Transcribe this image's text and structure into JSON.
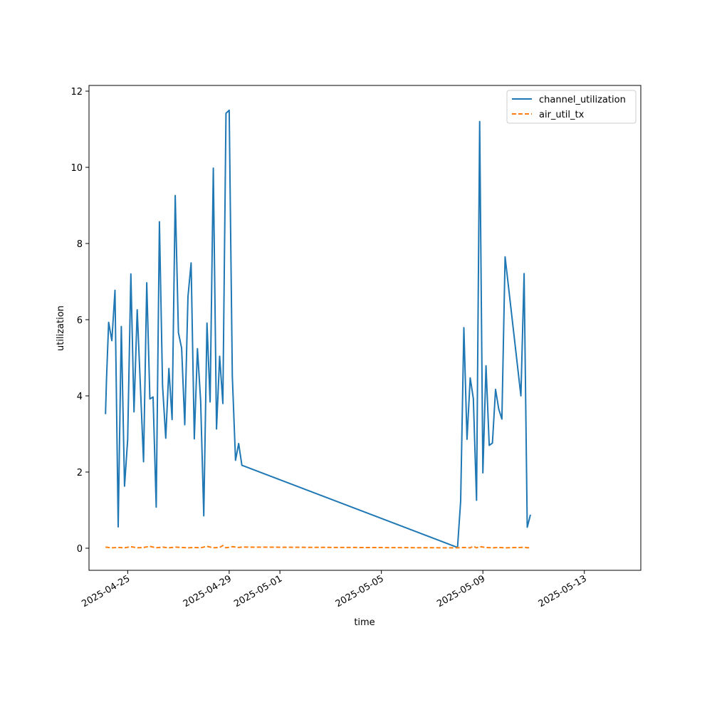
{
  "chart_data": {
    "type": "line",
    "title": "",
    "xlabel": "time",
    "ylabel": "utilization",
    "x_ticks": [
      "2025-04-25",
      "2025-04-29",
      "2025-05-01",
      "2025-05-05",
      "2025-05-09",
      "2025-05-13"
    ],
    "y_ticks": [
      "0",
      "2",
      "4",
      "6",
      "8",
      "10",
      "12"
    ],
    "xlim": [
      "2025-04-23 11:24",
      "2025-05-15 05:24"
    ],
    "ylim": [
      -0.58,
      12.15
    ],
    "grid": false,
    "legend": "upper right",
    "series": [
      {
        "name": "channel_utilization",
        "color": "#1f77b4",
        "style": "solid",
        "points": [
          [
            "2025-04-24 03:00",
            3.52
          ],
          [
            "2025-04-24 04:00",
            4.45
          ],
          [
            "2025-04-24 06:00",
            5.93
          ],
          [
            "2025-04-24 09:00",
            5.45
          ],
          [
            "2025-04-24 12:00",
            6.77
          ],
          [
            "2025-04-24 15:00",
            0.56
          ],
          [
            "2025-04-24 18:00",
            5.82
          ],
          [
            "2025-04-24 21:00",
            1.63
          ],
          [
            "2025-04-25 00:00",
            2.85
          ],
          [
            "2025-04-25 03:00",
            7.2
          ],
          [
            "2025-04-25 06:00",
            3.58
          ],
          [
            "2025-04-25 09:00",
            6.26
          ],
          [
            "2025-04-25 15:00",
            2.27
          ],
          [
            "2025-04-25 18:00",
            6.97
          ],
          [
            "2025-04-25 21:00",
            3.92
          ],
          [
            "2025-04-26 00:00",
            3.97
          ],
          [
            "2025-04-26 03:00",
            1.08
          ],
          [
            "2025-04-26 06:00",
            8.57
          ],
          [
            "2025-04-26 09:00",
            4.27
          ],
          [
            "2025-04-26 12:00",
            2.89
          ],
          [
            "2025-04-26 15:00",
            4.72
          ],
          [
            "2025-04-26 18:00",
            3.38
          ],
          [
            "2025-04-26 21:00",
            9.26
          ],
          [
            "2025-04-27 00:00",
            5.66
          ],
          [
            "2025-04-27 03:00",
            5.25
          ],
          [
            "2025-04-27 06:00",
            3.24
          ],
          [
            "2025-04-27 09:00",
            6.6
          ],
          [
            "2025-04-27 12:00",
            7.49
          ],
          [
            "2025-04-27 15:00",
            2.87
          ],
          [
            "2025-04-27 18:00",
            5.24
          ],
          [
            "2025-04-27 21:00",
            3.87
          ],
          [
            "2025-04-28 00:00",
            0.85
          ],
          [
            "2025-04-28 03:00",
            5.91
          ],
          [
            "2025-04-28 06:00",
            3.84
          ],
          [
            "2025-04-28 09:00",
            9.98
          ],
          [
            "2025-04-28 12:00",
            3.13
          ],
          [
            "2025-04-28 15:00",
            5.04
          ],
          [
            "2025-04-28 18:00",
            3.8
          ],
          [
            "2025-04-28 21:00",
            11.42
          ],
          [
            "2025-04-29 00:00",
            11.5
          ],
          [
            "2025-04-29 03:00",
            4.51
          ],
          [
            "2025-04-29 06:00",
            2.31
          ],
          [
            "2025-04-29 09:00",
            2.75
          ],
          [
            "2025-04-29 12:00",
            2.18
          ],
          [
            "2025-05-08 00:00",
            0.02
          ],
          [
            "2025-05-08 03:00",
            1.24
          ],
          [
            "2025-05-08 06:00",
            5.79
          ],
          [
            "2025-05-08 09:00",
            2.86
          ],
          [
            "2025-05-08 12:00",
            4.47
          ],
          [
            "2025-05-08 15:00",
            3.93
          ],
          [
            "2025-05-08 18:00",
            1.26
          ],
          [
            "2025-05-08 21:00",
            11.2
          ],
          [
            "2025-05-09 00:00",
            1.98
          ],
          [
            "2025-05-09 03:00",
            4.79
          ],
          [
            "2025-05-09 06:00",
            2.7
          ],
          [
            "2025-05-09 09:00",
            2.76
          ],
          [
            "2025-05-09 12:00",
            4.17
          ],
          [
            "2025-05-09 15:00",
            3.65
          ],
          [
            "2025-05-09 18:00",
            3.39
          ],
          [
            "2025-05-09 21:00",
            7.65
          ],
          [
            "2025-05-10 12:00",
            4.0
          ],
          [
            "2025-05-10 15:00",
            7.21
          ],
          [
            "2025-05-10 18:00",
            0.55
          ],
          [
            "2025-05-10 21:00",
            0.88
          ]
        ]
      },
      {
        "name": "air_util_tx",
        "color": "#ff7f0e",
        "style": "dashed",
        "points": [
          [
            "2025-04-24 03:00",
            0.03
          ],
          [
            "2025-04-24 09:00",
            0.01
          ],
          [
            "2025-04-24 15:00",
            0.02
          ],
          [
            "2025-04-24 21:00",
            0.01
          ],
          [
            "2025-04-25 03:00",
            0.04
          ],
          [
            "2025-04-25 09:00",
            0.01
          ],
          [
            "2025-04-25 15:00",
            0.02
          ],
          [
            "2025-04-25 21:00",
            0.05
          ],
          [
            "2025-04-26 03:00",
            0.01
          ],
          [
            "2025-04-26 09:00",
            0.03
          ],
          [
            "2025-04-26 15:00",
            0.01
          ],
          [
            "2025-04-26 21:00",
            0.03
          ],
          [
            "2025-04-27 03:00",
            0.02
          ],
          [
            "2025-04-27 09:00",
            0.01
          ],
          [
            "2025-04-27 15:00",
            0.02
          ],
          [
            "2025-04-27 21:00",
            0.01
          ],
          [
            "2025-04-28 03:00",
            0.05
          ],
          [
            "2025-04-28 09:00",
            0.01
          ],
          [
            "2025-04-28 15:00",
            0.02
          ],
          [
            "2025-04-28 18:00",
            0.07
          ],
          [
            "2025-04-28 21:00",
            0.01
          ],
          [
            "2025-04-29 03:00",
            0.04
          ],
          [
            "2025-04-29 09:00",
            0.02
          ],
          [
            "2025-04-29 12:00",
            0.03
          ],
          [
            "2025-05-08 00:00",
            0.01
          ],
          [
            "2025-05-08 06:00",
            0.02
          ],
          [
            "2025-05-08 12:00",
            0.01
          ],
          [
            "2025-05-08 15:00",
            0.05
          ],
          [
            "2025-05-08 18:00",
            0.01
          ],
          [
            "2025-05-08 21:00",
            0.04
          ],
          [
            "2025-05-09 03:00",
            0.02
          ],
          [
            "2025-05-09 09:00",
            0.01
          ],
          [
            "2025-05-09 15:00",
            0.02
          ],
          [
            "2025-05-09 21:00",
            0.01
          ],
          [
            "2025-05-10 12:00",
            0.02
          ],
          [
            "2025-05-10 15:00",
            0.03
          ],
          [
            "2025-05-10 18:00",
            0.01
          ],
          [
            "2025-05-10 21:00",
            0.02
          ]
        ]
      }
    ]
  }
}
